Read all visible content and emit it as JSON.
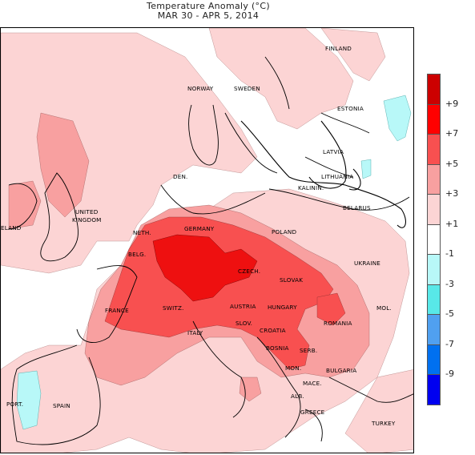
{
  "title": {
    "line1": "Temperature Anomaly (°C)",
    "line2": "MAR 30 - APR 5, 2014"
  },
  "legend": {
    "bins": [
      {
        "label": "+9",
        "color": "#cc0000"
      },
      {
        "label": "+7",
        "color": "#ff0000"
      },
      {
        "label": "+5",
        "color": "#f85050"
      },
      {
        "label": "+3",
        "color": "#f8a0a0"
      },
      {
        "label": "+1",
        "color": "#fcd4d4"
      },
      {
        "label": "-1",
        "color": "#ffffff"
      },
      {
        "label": "-3",
        "color": "#b8f8f8"
      },
      {
        "label": "-5",
        "color": "#58e8e8"
      },
      {
        "label": "-7",
        "color": "#50a0f0"
      },
      {
        "label": "-9",
        "color": "#0070f0"
      },
      {
        "label": "",
        "color": "#0000f0"
      }
    ]
  },
  "labels": {
    "finland": "FINLAND",
    "norway": "NORWAY",
    "sweden": "SWEDEN",
    "estonia": "ESTONIA",
    "latvia": "LATVIA",
    "lithuania": "LITHUANIA",
    "kalinin": "KALININ.",
    "belarus": "BELARUS",
    "den": "DEN.",
    "united_kingdom_1": "UNITED",
    "united_kingdom_2": "KINGDOM",
    "ireland": "ELAND",
    "neth": "NETH.",
    "belg": "BELG.",
    "germany": "GERMANY",
    "poland": "POLAND",
    "ukraine": "UKRAINE",
    "czech": "CZECH.",
    "slovak": "SLOVAK",
    "france": "FRANCE",
    "switz": "SWITZ.",
    "austria": "AUSTRIA",
    "hungary": "HUNGARY",
    "mol": "MOL.",
    "romania": "ROMANIA",
    "slov": "SLOV.",
    "croatia": "CROATIA",
    "italy": "ITALY",
    "bosnia": "BOSNIA",
    "serb": "SERB.",
    "mon": "MON.",
    "bulgaria": "BULGARIA",
    "mace": "MACE.",
    "alb": "ALB.",
    "greece": "GREECE",
    "turkey": "TURKEY",
    "port": "PORT.",
    "spain": "SPAIN"
  },
  "colors": {
    "land_outline": "#000000",
    "anomaly_plus1": "#fcd4d4",
    "anomaly_plus3": "#f8a0a0",
    "anomaly_plus5": "#f85050",
    "anomaly_plus7": "#ff0000",
    "anomaly_minus1": "#b8f8f8"
  }
}
